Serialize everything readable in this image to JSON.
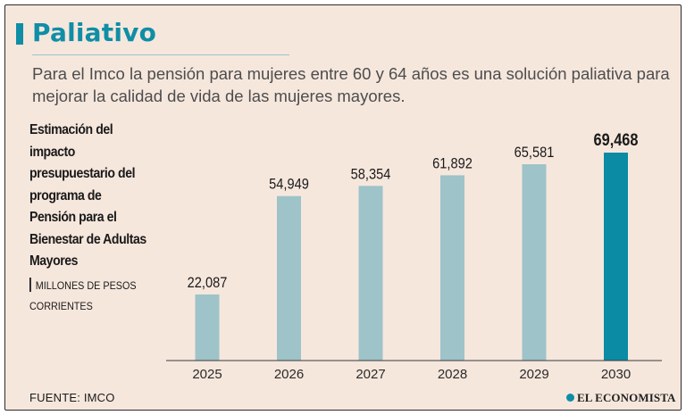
{
  "header": {
    "title": "Paliativo",
    "subtitle": "Para el Imco la pensión para mujeres entre 60 y 64 años es una solución paliativa para mejorar la calidad de vida de las mujeres mayores."
  },
  "side_panel": {
    "heading": "Estimación del impacto presupuestario del programa de Pensión para el Bienestar de Adultas Mayores",
    "units": "MILLONES DE PESOS CORRIENTES"
  },
  "footer": {
    "source": "FUENTE: IMCO",
    "brand": "EL ECONOMISTA"
  },
  "colors": {
    "background": "#f6e7dd",
    "accent": "#0f8ea6",
    "bar": "#9ec3c9",
    "bar_highlight": "#0b8ba4"
  },
  "chart_data": {
    "type": "bar",
    "title": "Estimación del impacto presupuestario del programa de Pensión para el Bienestar de Adultas Mayores",
    "ylabel": "Millones de pesos corrientes",
    "xlabel": "",
    "categories": [
      "2025",
      "2026",
      "2027",
      "2028",
      "2029",
      "2030"
    ],
    "values": [
      22087,
      54949,
      58354,
      61892,
      65581,
      69468
    ],
    "value_labels": [
      "22,087",
      "54,949",
      "58,354",
      "61,892",
      "65,581",
      "69,468"
    ],
    "highlight_index": 5,
    "ylim": [
      0,
      75000
    ],
    "grid": false
  }
}
